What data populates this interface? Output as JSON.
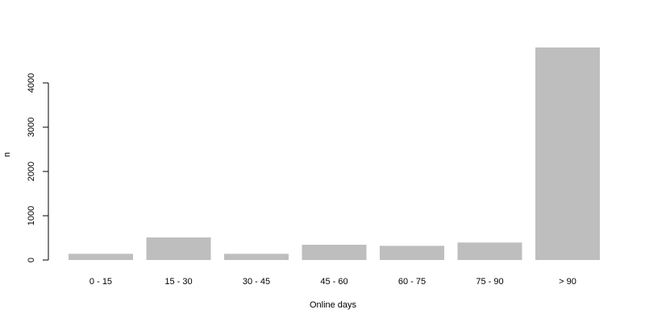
{
  "chart_data": {
    "type": "bar",
    "categories": [
      "0 - 15",
      "15 - 30",
      "30 - 45",
      "45 - 60",
      "60 - 75",
      "75 - 90",
      "> 90"
    ],
    "values": [
      140,
      510,
      140,
      345,
      320,
      395,
      4800
    ],
    "xlabel": "Online days",
    "ylabel": "n",
    "yticks": [
      0,
      1000,
      2000,
      3000,
      4000
    ],
    "ylim": [
      0,
      4800
    ],
    "grid": false,
    "legend": "none",
    "bar_color": "#bebebe"
  }
}
